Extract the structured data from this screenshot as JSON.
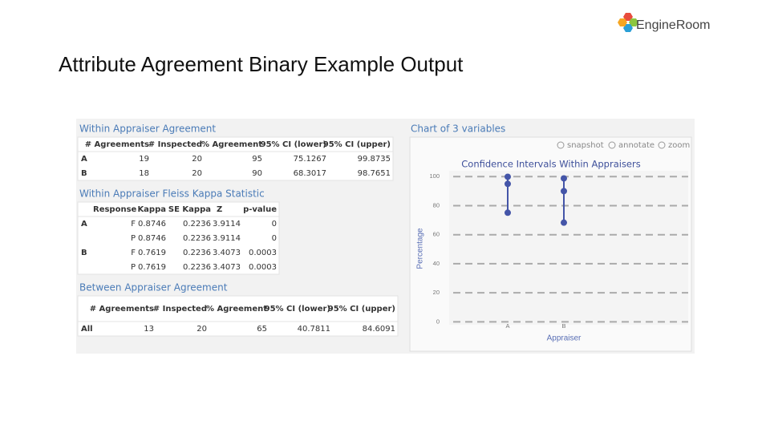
{
  "logo": "EngineRoom",
  "title": "Attribute Agreement Binary Example Output",
  "within": {
    "title": "Within Appraiser Agreement",
    "columns": [
      null,
      "# Agreements",
      "# Inspected",
      "% Agreement",
      "95% CI (lower)",
      "95% CI (upper)"
    ],
    "rows": [
      [
        "A",
        19,
        20,
        95,
        75.1267,
        99.8735
      ],
      [
        "B",
        18,
        20,
        90,
        68.3017,
        98.7651
      ]
    ]
  },
  "kappa": {
    "title": "Within Appraiser Fleiss Kappa Statistic",
    "columns": [
      null,
      "Response",
      "Kappa",
      "SE Kappa",
      "Z",
      "p-value"
    ],
    "rows": [
      [
        "A",
        "F",
        0.8746,
        0.2236,
        3.9114,
        0
      ],
      [
        null,
        "P",
        0.8746,
        0.2236,
        3.9114,
        0
      ],
      [
        "B",
        "F",
        0.7619,
        0.2236,
        3.4073,
        0.0003
      ],
      [
        null,
        "P",
        0.7619,
        0.2236,
        3.4073,
        0.0003
      ]
    ]
  },
  "between": {
    "title": "Between Appraiser Agreement",
    "columns": [
      null,
      "# Agreements",
      "# Inspected",
      "% Agreement",
      "95% CI (lower)",
      "95% CI (upper)"
    ],
    "rows": [
      [
        "All",
        13,
        20,
        65,
        40.7811,
        84.6091
      ]
    ]
  },
  "chart_panel": {
    "title": "Chart of 3 variables",
    "toolbar": [
      "snapshot",
      "annotate",
      "zoom"
    ]
  },
  "chart_data": {
    "type": "interval",
    "title": "Confidence Intervals Within Appraisers",
    "x_label": "Appraiser",
    "y_label": "Percentage",
    "categories": [
      "A",
      "B"
    ],
    "lower": [
      75.1267,
      68.3017
    ],
    "values": [
      95,
      90
    ],
    "upper": [
      99.8735,
      98.7651
    ],
    "color": "#4455a8",
    "ylim": [
      -2,
      104
    ],
    "yticks": [
      0,
      20,
      40,
      60,
      80,
      100
    ],
    "grid": true
  }
}
